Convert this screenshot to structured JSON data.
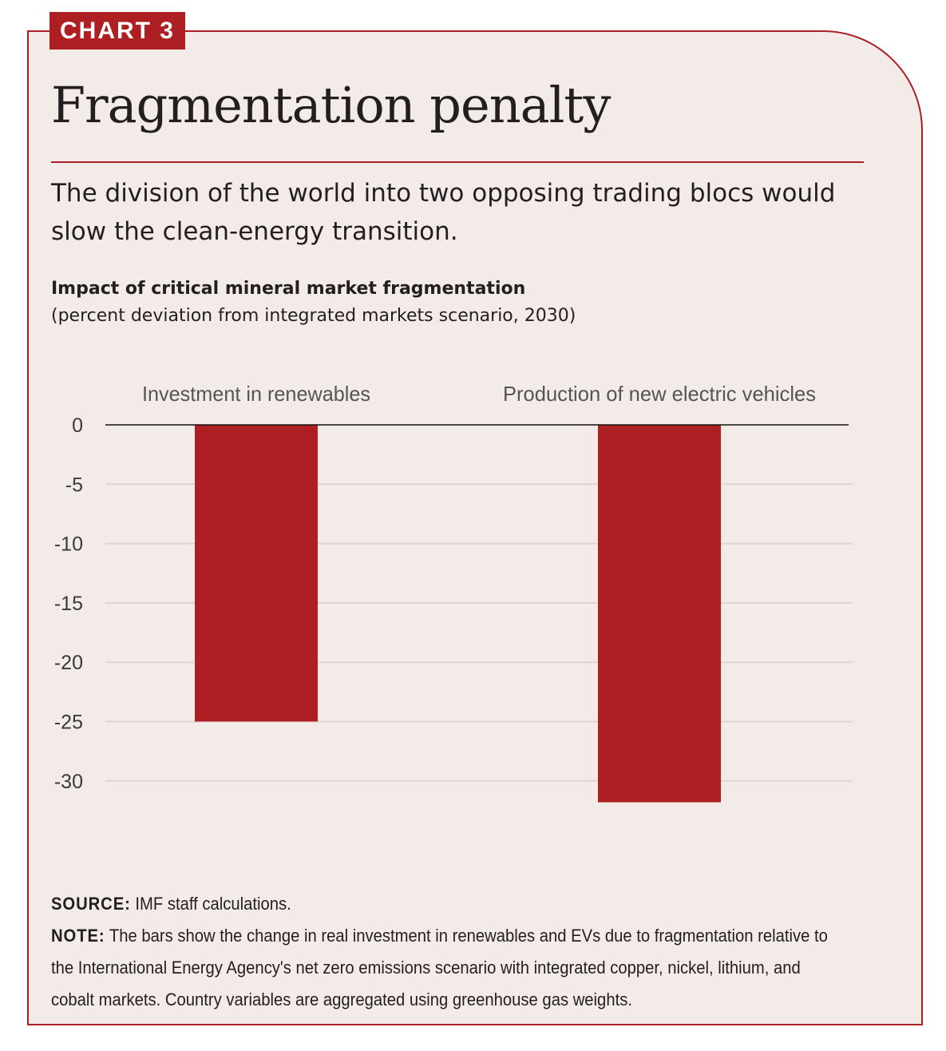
{
  "badge": "CHART 3",
  "title": "Fragmentation penalty",
  "subtitle": "The division of the world into two opposing trading blocs would slow the clean-energy transition.",
  "colors": {
    "accent": "#ae1f23",
    "background": "#f3ebe7",
    "bar": "#ae1f23"
  },
  "chart_data": {
    "type": "bar",
    "title": "Impact of critical mineral market fragmentation",
    "subtitle": "(percent deviation from integrated markets scenario, 2030)",
    "categories": [
      "Investment in renewables",
      "Production of new electric vehicles"
    ],
    "values": [
      -25,
      -31.8
    ],
    "yticks": [
      "0",
      "-5",
      "-10",
      "-15",
      "-20",
      "-25",
      "-30"
    ],
    "ylim": [
      -32,
      0
    ],
    "grid": true
  },
  "source_label": "SOURCE:",
  "source": "IMF staff calculations.",
  "note_label": "NOTE:",
  "note": "The bars show the change in real investment in renewables and EVs due to fragmentation relative to the International Energy Agency's net zero emissions scenario with integrated copper, nickel, lithium, and cobalt markets. Country variables are aggregated using greenhouse gas weights."
}
